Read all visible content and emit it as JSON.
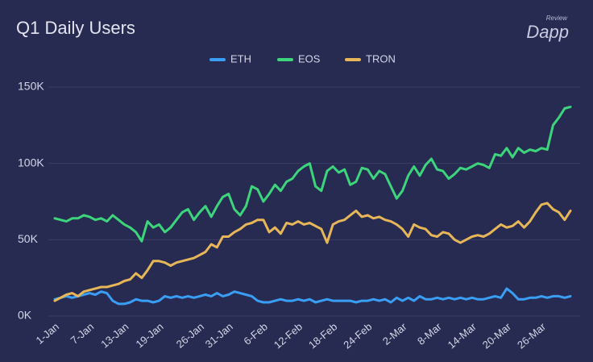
{
  "chart_data": {
    "type": "line",
    "title": "Q1 Daily Users",
    "logo": {
      "small": "Review",
      "big": "Dapp"
    },
    "categories": [
      "1-Jan",
      null,
      null,
      null,
      null,
      null,
      "7-Jan",
      null,
      null,
      null,
      null,
      null,
      "13-Jan",
      null,
      null,
      null,
      null,
      null,
      "19-Jan",
      null,
      null,
      null,
      null,
      null,
      null,
      "26-Jan",
      null,
      null,
      null,
      null,
      "31-Jan",
      null,
      null,
      null,
      null,
      null,
      "6-Feb",
      null,
      null,
      null,
      null,
      null,
      "12-Feb",
      null,
      null,
      null,
      null,
      null,
      "18-Feb",
      null,
      null,
      null,
      null,
      null,
      "24-Feb",
      null,
      null,
      null,
      null,
      null,
      "2-Mar",
      null,
      null,
      null,
      null,
      null,
      "8-Mar",
      null,
      null,
      null,
      null,
      null,
      "14-Mar",
      null,
      null,
      null,
      null,
      null,
      "20-Mar",
      null,
      null,
      null,
      null,
      null,
      "26-Mar",
      null,
      null,
      null,
      null,
      null
    ],
    "series": [
      {
        "name": "ETH",
        "color": "#3a9ef5",
        "values": [
          11000,
          12000,
          13000,
          12000,
          13000,
          14000,
          15000,
          14000,
          16000,
          15000,
          10000,
          8000,
          8000,
          9000,
          11000,
          10000,
          10000,
          9000,
          10000,
          13000,
          12000,
          13000,
          12000,
          13000,
          12000,
          13000,
          14000,
          13000,
          15000,
          13000,
          14000,
          16000,
          15000,
          14000,
          13000,
          10000,
          9000,
          9000,
          10000,
          11000,
          10000,
          10000,
          11000,
          10000,
          11000,
          9000,
          10000,
          11000,
          10000,
          10000,
          10000,
          10000,
          9000,
          10000,
          10000,
          11000,
          10000,
          11000,
          9000,
          12000,
          10000,
          12000,
          10000,
          13000,
          11000,
          11000,
          12000,
          11000,
          12000,
          11000,
          12000,
          11000,
          12000,
          11000,
          11000,
          12000,
          13000,
          12000,
          18000,
          15000,
          11000,
          11000,
          12000,
          12000,
          13000,
          12000,
          13000,
          13000,
          12000,
          13000
        ]
      },
      {
        "name": "EOS",
        "color": "#3dd57b",
        "values": [
          64000,
          63000,
          62000,
          64000,
          64000,
          66000,
          65000,
          63000,
          64000,
          62000,
          66000,
          63000,
          60000,
          58000,
          55000,
          49000,
          62000,
          58000,
          60000,
          55000,
          58000,
          63000,
          68000,
          70000,
          63000,
          68000,
          72000,
          65000,
          72000,
          78000,
          80000,
          70000,
          66000,
          72000,
          85000,
          83000,
          75000,
          80000,
          86000,
          82000,
          88000,
          90000,
          95000,
          98000,
          100000,
          85000,
          82000,
          95000,
          98000,
          94000,
          96000,
          86000,
          88000,
          97000,
          96000,
          90000,
          95000,
          93000,
          85000,
          77000,
          82000,
          92000,
          98000,
          92000,
          99000,
          103000,
          96000,
          95000,
          90000,
          93000,
          97000,
          96000,
          98000,
          100000,
          99000,
          97000,
          106000,
          105000,
          110000,
          104000,
          110000,
          107000,
          109000,
          108000,
          110000,
          109000,
          125000,
          130000,
          136000,
          137000
        ]
      },
      {
        "name": "TRON",
        "color": "#e6b658",
        "values": [
          10000,
          12000,
          14000,
          15000,
          13000,
          16000,
          17000,
          18000,
          19000,
          19000,
          20000,
          21000,
          23000,
          24000,
          28000,
          25000,
          30000,
          36000,
          36000,
          35000,
          33000,
          35000,
          36000,
          37000,
          38000,
          40000,
          42000,
          47000,
          45000,
          52000,
          52000,
          55000,
          57000,
          60000,
          61000,
          63000,
          63000,
          55000,
          58000,
          54000,
          61000,
          60000,
          62000,
          60000,
          61000,
          59000,
          57000,
          48000,
          60000,
          62000,
          63000,
          66000,
          69000,
          65000,
          66000,
          64000,
          65000,
          63000,
          62000,
          60000,
          57000,
          52000,
          60000,
          58000,
          57000,
          53000,
          52000,
          55000,
          54000,
          50000,
          48000,
          50000,
          52000,
          53000,
          52000,
          54000,
          57000,
          60000,
          58000,
          59000,
          62000,
          58000,
          62000,
          68000,
          73000,
          74000,
          70000,
          68000,
          63000,
          69000
        ]
      }
    ],
    "ylim": [
      0,
      150000
    ],
    "yticks": [
      {
        "value": 0,
        "label": "0K"
      },
      {
        "value": 50000,
        "label": "50K"
      },
      {
        "value": 100000,
        "label": "100K"
      },
      {
        "value": 150000,
        "label": "150K"
      }
    ],
    "grid": true,
    "legend": "top"
  }
}
